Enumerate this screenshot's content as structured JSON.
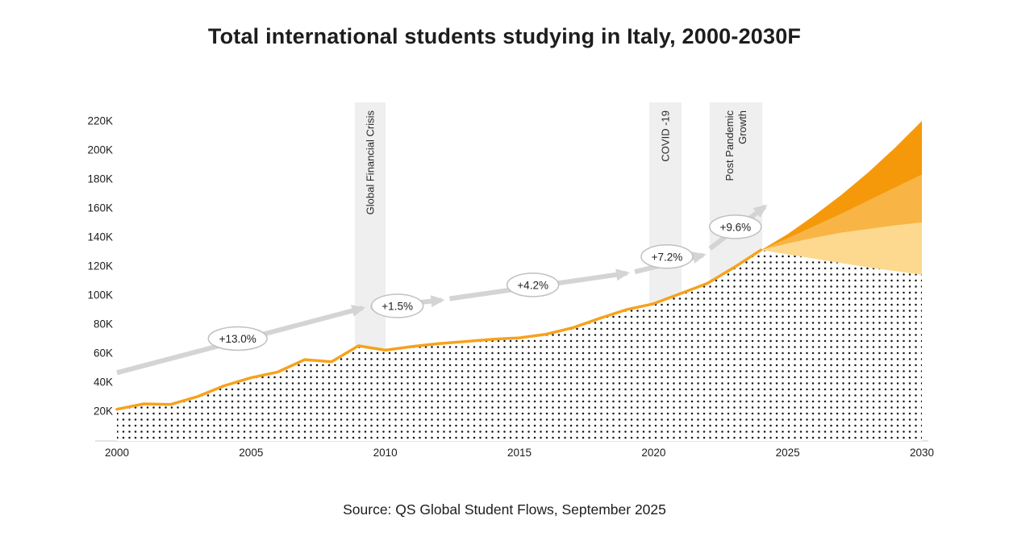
{
  "page": {
    "title": "Total international students studying in Italy, 2000-2030F",
    "source": "Source: QS Global Student Flows, September 2025"
  },
  "colors": {
    "accent_line": "#F6A21D",
    "fan_dark": "#F5990B",
    "fan_mid": "#F8B545",
    "fan_light": "#FCD98F",
    "event_band": "#EFEFEF",
    "trend_arrow": "#D4D4D4",
    "dot_fill": "#161616",
    "axis_line": "#C9C9C9",
    "text": "#1D1D1D"
  },
  "chart_data": {
    "type": "area",
    "title": "Total international students studying in Italy, 2000-2030F",
    "xlabel": "",
    "ylabel": "",
    "xlim": [
      2000,
      2030
    ],
    "ylim": [
      0,
      230
    ],
    "x_ticks": [
      2000,
      2005,
      2010,
      2015,
      2020,
      2025,
      2030
    ],
    "y_ticks": [
      20,
      40,
      60,
      80,
      100,
      120,
      140,
      160,
      180,
      200,
      220
    ],
    "y_tick_suffix": "K",
    "historical": {
      "years": [
        2000,
        2001,
        2002,
        2003,
        2004,
        2005,
        2006,
        2007,
        2008,
        2009,
        2010,
        2011,
        2012,
        2013,
        2014,
        2015,
        2016,
        2017,
        2018,
        2019,
        2020,
        2021,
        2022,
        2023,
        2024
      ],
      "values_k": [
        21.3,
        25,
        24.6,
        30,
        37.5,
        43,
        47,
        55.5,
        54,
        65,
        62,
        64.5,
        66.5,
        68,
        69.5,
        70.5,
        73,
        77.5,
        84,
        90,
        94,
        101,
        108,
        119,
        131
      ]
    },
    "forecast": {
      "years": [
        2024,
        2025,
        2026,
        2027,
        2028,
        2029,
        2030
      ],
      "base_k": [
        131,
        128,
        125,
        122,
        119,
        116.5,
        114
      ],
      "low_k": [
        131,
        135.5,
        139.5,
        143,
        145.5,
        148,
        150
      ],
      "mid_k": [
        131,
        139,
        147.5,
        156,
        165,
        174,
        183
      ],
      "high_k": [
        131,
        142,
        155,
        169,
        184.5,
        201.5,
        220
      ]
    },
    "events": [
      {
        "label": "Global Financial Crisis",
        "lines": [
          "Global Financial Crisis"
        ],
        "from_year": 2008.87,
        "to_year": 2010.01
      },
      {
        "label": "COVID -19",
        "lines": [
          "COVID -19"
        ],
        "from_year": 2019.84,
        "to_year": 2021.04
      },
      {
        "label": "Post Pandemic Growth",
        "lines": [
          "Post Pandemic",
          "Growth"
        ],
        "from_year": 2022.09,
        "to_year": 2024.05
      }
    ],
    "growth_annotations": [
      {
        "label": "+13.0%",
        "bubble": {
          "year": 2004.5,
          "value_k": 70
        },
        "arrow": {
          "from_year": 2000.0,
          "from_value_k": 46.5,
          "to_year": 2009.15,
          "to_value_k": 91.0
        }
      },
      {
        "label": "+1.5%",
        "bubble": {
          "year": 2010.45,
          "value_k": 92.5
        },
        "arrow": {
          "from_year": 2009.45,
          "from_value_k": 91.5,
          "to_year": 2012.1,
          "to_value_k": 96.5
        }
      },
      {
        "label": "+4.2%",
        "bubble": {
          "year": 2015.5,
          "value_k": 107
        },
        "arrow": {
          "from_year": 2012.4,
          "from_value_k": 97.5,
          "to_year": 2019.0,
          "to_value_k": 115.0
        }
      },
      {
        "label": "+7.2%",
        "bubble": {
          "year": 2020.5,
          "value_k": 126.5
        },
        "arrow": {
          "from_year": 2019.3,
          "from_value_k": 116.0,
          "to_year": 2021.85,
          "to_value_k": 127.5
        }
      },
      {
        "label": "+9.6%",
        "bubble": {
          "year": 2023.05,
          "value_k": 147
        },
        "arrow": {
          "from_year": 2022.1,
          "from_value_k": 132.0,
          "to_year": 2024.15,
          "to_value_k": 161.0
        }
      }
    ]
  }
}
